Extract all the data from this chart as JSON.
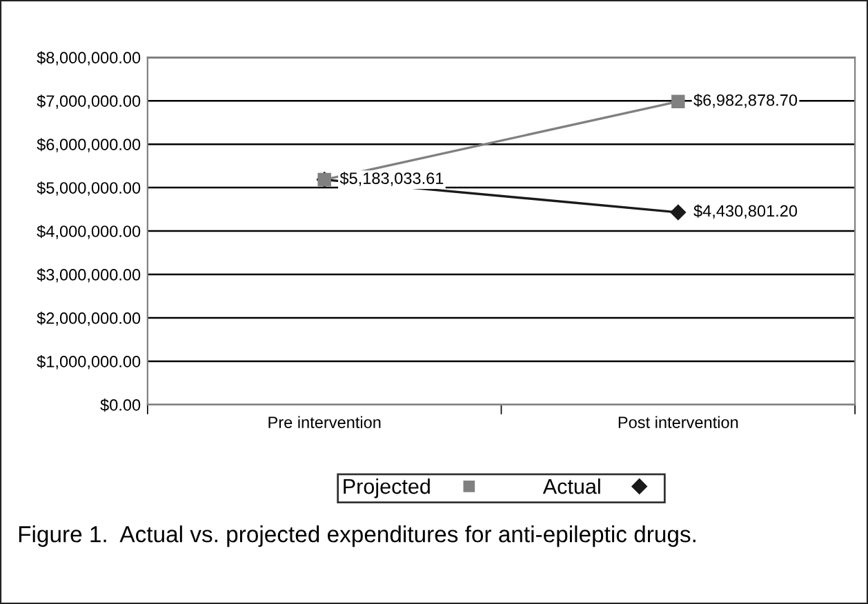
{
  "chart_data": {
    "type": "line",
    "categories": [
      "Pre intervention",
      "Post intervention"
    ],
    "series": [
      {
        "name": "Projected",
        "color": "#808080",
        "marker": "square",
        "values": [
          5183033.61,
          6982878.7
        ],
        "value_labels": [
          null,
          "$6,982,878.70"
        ]
      },
      {
        "name": "Actual",
        "color": "#1a1a1a",
        "marker": "diamond",
        "values": [
          5183033.61,
          4430801.2
        ],
        "value_labels": [
          "$5,183,033.61",
          "$4,430,801.20"
        ]
      }
    ],
    "ylim": [
      0,
      8000000
    ],
    "yticks": [
      {
        "value": 0,
        "label": "$0.00"
      },
      {
        "value": 1000000,
        "label": "$1,000,000.00"
      },
      {
        "value": 2000000,
        "label": "$2,000,000.00"
      },
      {
        "value": 3000000,
        "label": "$3,000,000.00"
      },
      {
        "value": 4000000,
        "label": "$4,000,000.00"
      },
      {
        "value": 5000000,
        "label": "$5,000,000.00"
      },
      {
        "value": 6000000,
        "label": "$6,000,000.00"
      },
      {
        "value": 7000000,
        "label": "$7,000,000.00"
      },
      {
        "value": 8000000,
        "label": "$8,000,000.00"
      }
    ],
    "grid": "y",
    "legend": "bottom",
    "line_style": "solid",
    "annotations": [
      "Figure 1.  Actual vs. projected expenditures for anti-epileptic drugs."
    ]
  }
}
